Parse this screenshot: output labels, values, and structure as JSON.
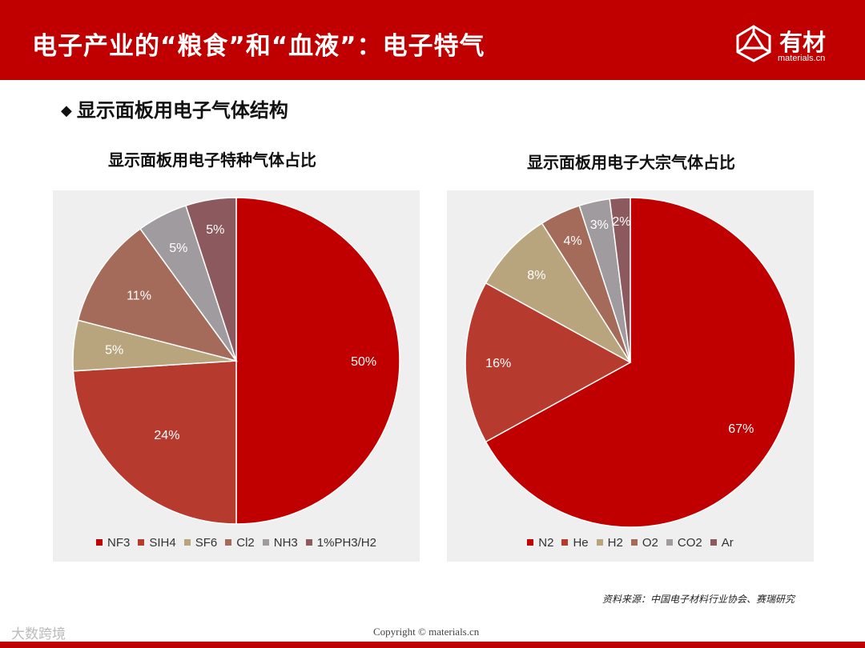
{
  "header": {
    "title": "电子产业的“粮食”和“血液”：电子特气",
    "logo_text": "有材",
    "logo_sub": "materials.cn"
  },
  "section_title": "显示面板用电子气体结构",
  "section_bullet": "◆",
  "chart_data": [
    {
      "type": "pie",
      "title": "显示面板用电子特种气体占比",
      "categories": [
        "NF3",
        "SIH4",
        "SF6",
        "Cl2",
        "NH3",
        "1%PH3/H2"
      ],
      "values": [
        50,
        24,
        5,
        11,
        5,
        5
      ],
      "labels": [
        "50%",
        "24%",
        "5%",
        "11%",
        "5%",
        "5%"
      ],
      "colors": [
        "#c00000",
        "#b73a2e",
        "#b8a57d",
        "#a56b5a",
        "#a09b9e",
        "#8c5a5e"
      ],
      "legend_position": "bottom"
    },
    {
      "type": "pie",
      "title": "显示面板用电子大宗气体占比",
      "categories": [
        "N2",
        "He",
        "H2",
        "O2",
        "CO2",
        "Ar"
      ],
      "values": [
        67,
        16,
        8,
        4,
        3,
        2
      ],
      "labels": [
        "67%",
        "16%",
        "8%",
        "4%",
        "3%",
        "2%"
      ],
      "colors": [
        "#c00000",
        "#b73a2e",
        "#b8a57d",
        "#a56b5a",
        "#a09b9e",
        "#8c5a5e"
      ],
      "legend_position": "bottom"
    }
  ],
  "source_note": "资料来源：中国电子材料行业协会、赛瑞研究",
  "copyright": "Copyright © materials.cn",
  "watermark": "大数跨境"
}
